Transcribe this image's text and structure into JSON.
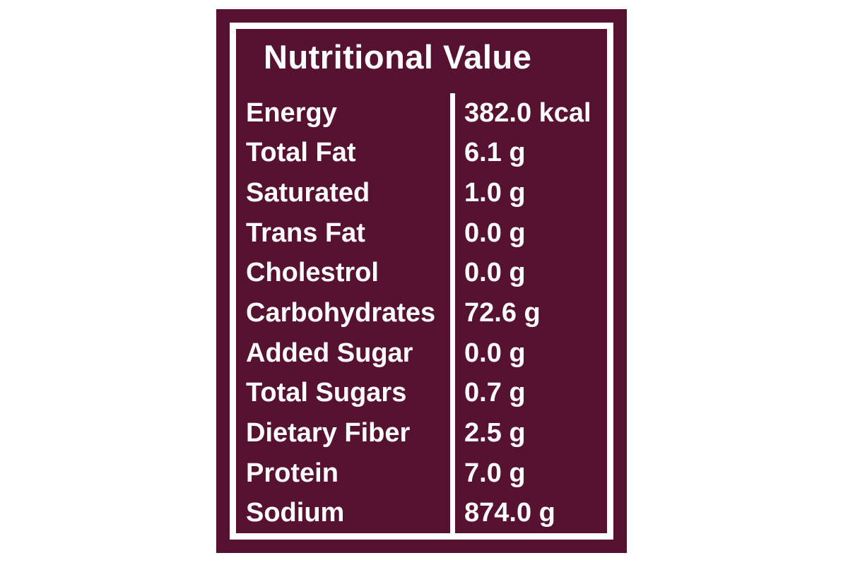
{
  "colors": {
    "card_background": "#571131",
    "frame": "#ffffff",
    "text": "#ffffff",
    "page_background": "#ffffff"
  },
  "card": {
    "title": "Nutritional Value",
    "rows": [
      {
        "label": "Energy",
        "value": "382.0 kcal"
      },
      {
        "label": "Total Fat",
        "value": "6.1 g"
      },
      {
        "label": "Saturated",
        "value": "1.0 g"
      },
      {
        "label": "Trans Fat",
        "value": "0.0 g"
      },
      {
        "label": "Cholestrol",
        "value": "0.0 g"
      },
      {
        "label": "Carbohydrates",
        "value": "72.6 g"
      },
      {
        "label": "Added Sugar",
        "value": "0.0 g"
      },
      {
        "label": "Total Sugars",
        "value": "0.7 g"
      },
      {
        "label": "Dietary Fiber",
        "value": "2.5 g"
      },
      {
        "label": "Protein",
        "value": "7.0 g"
      },
      {
        "label": "Sodium",
        "value": "874.0 g"
      }
    ]
  }
}
